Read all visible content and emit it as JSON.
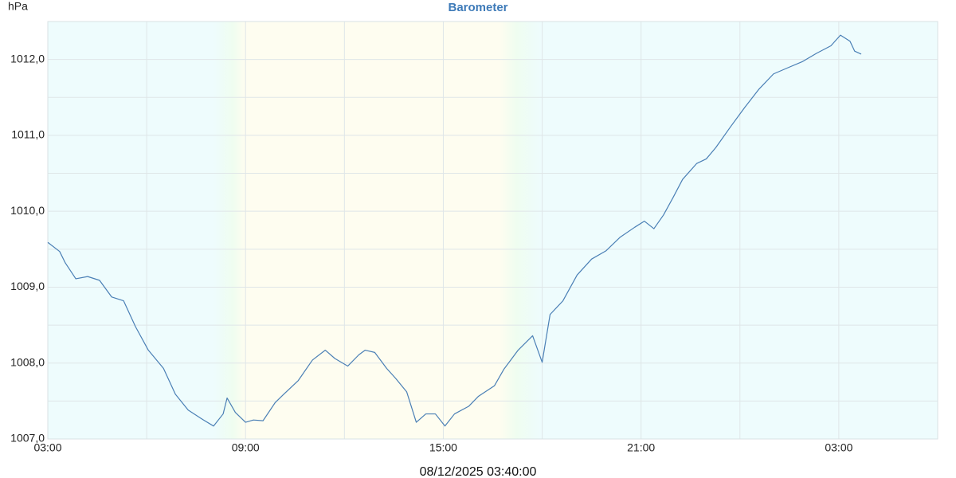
{
  "chart_data": {
    "type": "line",
    "title": "Barometer",
    "y_label": "hPa",
    "footer": "08/12/2025 03:40:00",
    "color": "#4a7fb5",
    "xlim": [
      0,
      27
    ],
    "xticks": [
      {
        "value": 0,
        "label": "03:00"
      },
      {
        "value": 6,
        "label": "09:00"
      },
      {
        "value": 12,
        "label": "15:00"
      },
      {
        "value": 18,
        "label": "21:00"
      },
      {
        "value": 24,
        "label": "03:00"
      }
    ],
    "minor_xticks": [
      3,
      9,
      15,
      21,
      27
    ],
    "ylim": [
      1007,
      1012.5
    ],
    "yticks": [
      {
        "value": 1007,
        "label": "1007,0"
      },
      {
        "value": 1008,
        "label": "1008,0"
      },
      {
        "value": 1009,
        "label": "1009,0"
      },
      {
        "value": 1010,
        "label": "1010,0"
      },
      {
        "value": 1011,
        "label": "1011,0"
      },
      {
        "value": 1012,
        "label": "1012,0"
      }
    ],
    "minor_yticks": [
      1007.5,
      1008.5,
      1009.5,
      1010.5,
      1011.5,
      1012.5
    ],
    "grid": true,
    "x": [
      0.0,
      0.36,
      0.53,
      0.85,
      1.21,
      1.57,
      1.94,
      2.3,
      2.66,
      3.05,
      3.51,
      3.87,
      4.26,
      4.65,
      5.03,
      5.32,
      5.44,
      5.69,
      6.0,
      6.24,
      6.53,
      6.9,
      7.16,
      7.6,
      8.03,
      8.42,
      8.71,
      9.1,
      9.44,
      9.63,
      9.92,
      10.28,
      10.55,
      10.89,
      11.18,
      11.47,
      11.76,
      12.05,
      12.34,
      12.77,
      13.06,
      13.55,
      13.84,
      14.27,
      14.71,
      15.0,
      15.24,
      15.63,
      16.06,
      16.5,
      16.94,
      17.37,
      17.81,
      18.1,
      18.39,
      18.68,
      18.97,
      19.26,
      19.69,
      19.98,
      20.27,
      20.71,
      21.15,
      21.58,
      22.02,
      22.45,
      22.89,
      23.32,
      23.76,
      24.05,
      24.34,
      24.48,
      24.68
    ],
    "values": [
      1009.59,
      1009.47,
      1009.32,
      1009.11,
      1009.14,
      1009.09,
      1008.87,
      1008.82,
      1008.48,
      1008.17,
      1007.93,
      1007.59,
      1007.38,
      1007.27,
      1007.17,
      1007.33,
      1007.54,
      1007.35,
      1007.22,
      1007.25,
      1007.24,
      1007.48,
      1007.59,
      1007.77,
      1008.04,
      1008.17,
      1008.06,
      1007.96,
      1008.11,
      1008.17,
      1008.14,
      1007.93,
      1007.8,
      1007.62,
      1007.22,
      1007.33,
      1007.33,
      1007.17,
      1007.33,
      1007.43,
      1007.56,
      1007.7,
      1007.92,
      1008.17,
      1008.36,
      1008.01,
      1008.64,
      1008.82,
      1009.16,
      1009.37,
      1009.48,
      1009.66,
      1009.79,
      1009.87,
      1009.77,
      1009.95,
      1010.18,
      1010.42,
      1010.63,
      1010.69,
      1010.84,
      1011.11,
      1011.37,
      1011.61,
      1011.81,
      1011.89,
      1011.97,
      1012.08,
      1012.18,
      1012.32,
      1012.24,
      1012.11,
      1012.07
    ]
  }
}
